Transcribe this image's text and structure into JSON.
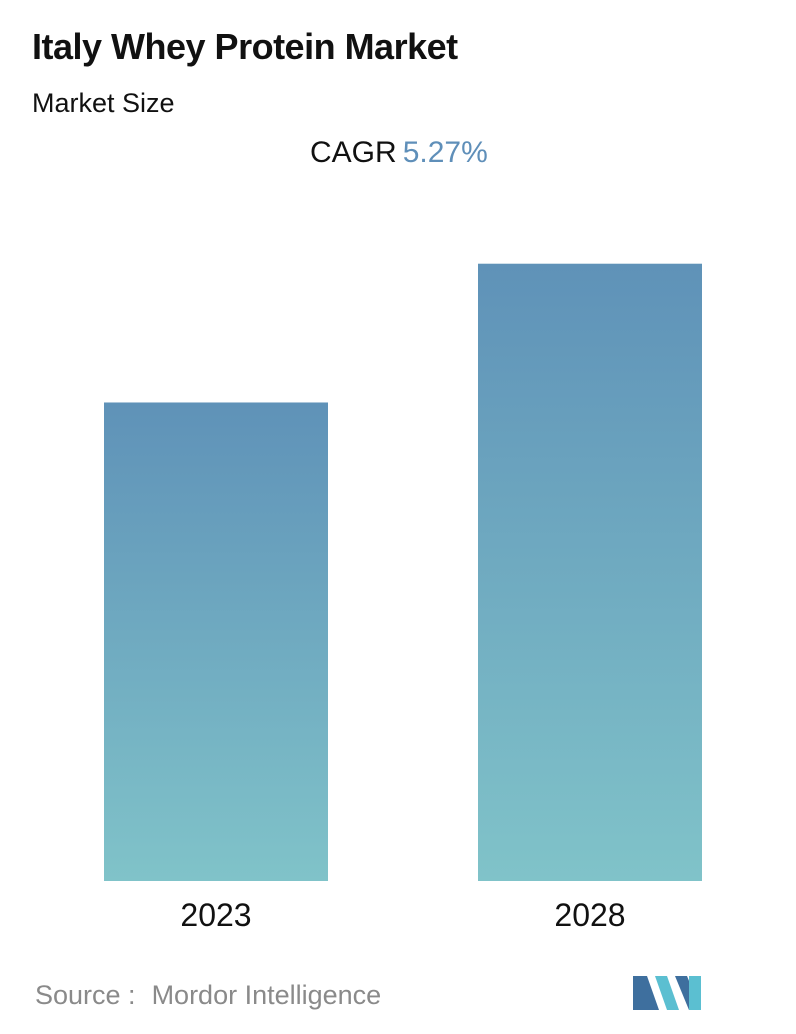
{
  "header": {
    "title": "Italy Whey Protein Market",
    "subtitle": "Market Size",
    "cagr_label": "CAGR",
    "cagr_value": "5.27%"
  },
  "footer": {
    "source_label": "Source :",
    "source_name": "Mordor Intelligence",
    "logo_icon": "mordor-intelligence-logo-icon"
  },
  "colors": {
    "bar_top": "#5f92b8",
    "bar_bottom": "#80c3c9",
    "cagr_accent": "#5f8fb9",
    "logo_dark": "#3e6f9e",
    "logo_light": "#5bbfd1"
  },
  "chart_data": {
    "type": "bar",
    "title": "Italy Whey Protein Market",
    "subtitle": "Market Size",
    "categories": [
      "2023",
      "2028"
    ],
    "values": [
      100,
      129
    ],
    "ylim": [
      0,
      135
    ],
    "grid": false,
    "legend": "none"
  }
}
